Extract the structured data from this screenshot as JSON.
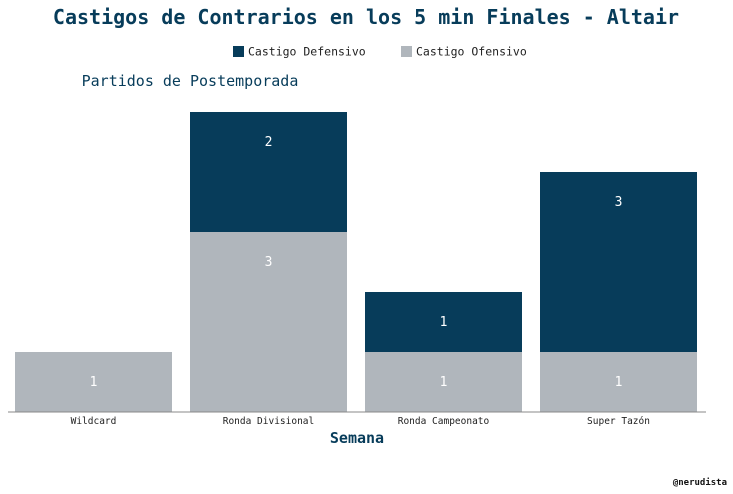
{
  "chart_data": {
    "type": "bar",
    "stacked": true,
    "title": "Castigos de Contrarios en los 5 min Finales - Altair",
    "subtitle": "Partidos de Postemporada",
    "xlabel": "Semana",
    "ylabel": "",
    "ylim": [
      0,
      5
    ],
    "grid": false,
    "legend_position": "top-center",
    "categories": [
      "Wildcard",
      "Ronda Divisional",
      "Ronda Campeonato",
      "Super Tazón"
    ],
    "series": [
      {
        "name": "Castigo Defensivo",
        "color": "#073c5a",
        "values": [
          0,
          2,
          1,
          3
        ]
      },
      {
        "name": "Castigo Ofensivo",
        "color": "#b0b6bc",
        "values": [
          1,
          3,
          1,
          1
        ]
      }
    ],
    "credit": "@nerudista"
  }
}
